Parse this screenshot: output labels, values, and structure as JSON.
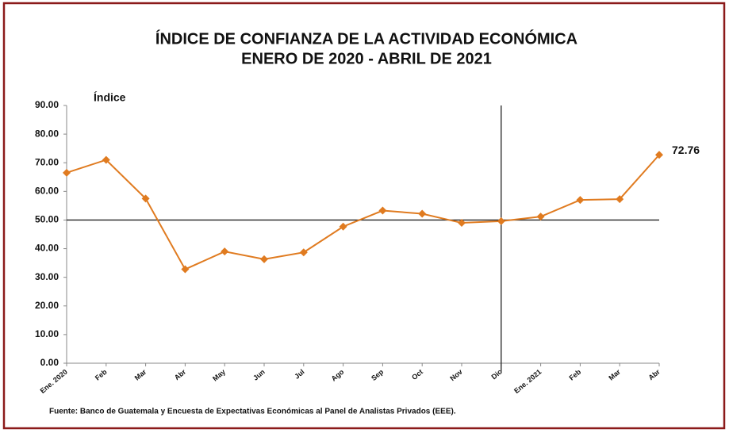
{
  "chart_data": {
    "type": "line",
    "title": "ÍNDICE DE CONFIANZA DE LA ACTIVIDAD ECONÓMICA",
    "subtitle": "ENERO DE 2020 - ABRIL DE 2021",
    "y_label": "Índice",
    "source": "Fuente: Banco de Guatemala y Encuesta  de Expectativas Económicas  al Panel de Analistas Privados (EEE).",
    "categories": [
      "Ene. 2020",
      "Feb",
      "Mar",
      "Abr",
      "May",
      "Jun",
      "Jul",
      "Ago",
      "Sep",
      "Oct",
      "Nov",
      "Dic",
      "Ene. 2021",
      "Feb",
      "Mar",
      "Abr"
    ],
    "series": [
      {
        "name": "Índice",
        "color": "#e07b20",
        "values": [
          66.5,
          71.0,
          57.5,
          32.8,
          39.0,
          36.3,
          38.7,
          47.7,
          53.3,
          52.2,
          49.0,
          49.6,
          51.2,
          57.0,
          57.3,
          72.76
        ],
        "value_labels": [
          null,
          null,
          null,
          null,
          null,
          null,
          null,
          null,
          null,
          null,
          null,
          null,
          null,
          null,
          null,
          "72.76"
        ]
      }
    ],
    "ylim": [
      0,
      90
    ],
    "yticks": [
      {
        "value": 0,
        "label": "0.00"
      },
      {
        "value": 10,
        "label": "10.00"
      },
      {
        "value": 20,
        "label": "20.00"
      },
      {
        "value": 30,
        "label": "30.00"
      },
      {
        "value": 40,
        "label": "40.00"
      },
      {
        "value": 50,
        "label": "50.00"
      },
      {
        "value": 60,
        "label": "60.00"
      },
      {
        "value": 70,
        "label": "70.00"
      },
      {
        "value": 80,
        "label": "80.00"
      },
      {
        "value": 90,
        "label": "90.00"
      }
    ],
    "reference_y": 50,
    "reference_x": "Dic"
  }
}
